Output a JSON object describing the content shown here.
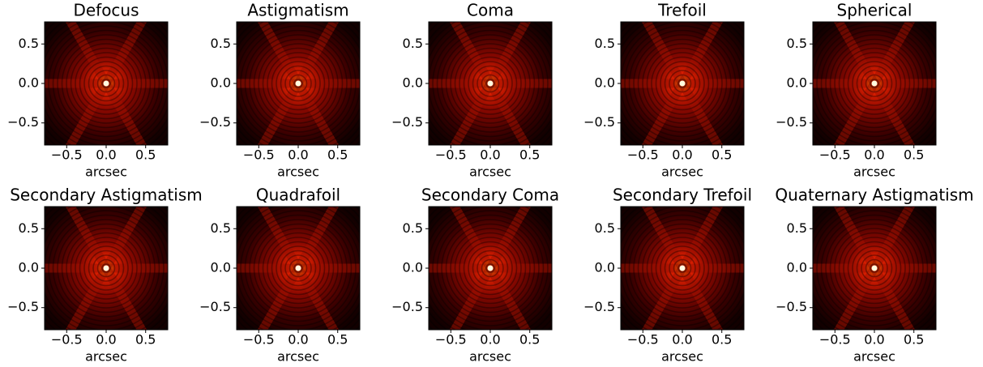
{
  "chart_data": [
    {
      "type": "image",
      "title": "Defocus",
      "xlabel": "arcsec",
      "xlim": [
        -0.78,
        0.78
      ],
      "ylim": [
        -0.78,
        0.78
      ],
      "xticks": [
        {
          "value": -0.5,
          "label": "−0.5"
        },
        {
          "value": 0,
          "label": "0.0"
        },
        0.5
      ],
      "yticks": [
        0.5,
        {
          "value": 0,
          "label": "0.0"
        },
        {
          "value": -0.5,
          "label": "−0.5"
        }
      ]
    },
    {
      "type": "image",
      "title": "Astigmatism",
      "xlabel": "arcsec",
      "xlim": [
        -0.78,
        0.78
      ],
      "ylim": [
        -0.78,
        0.78
      ],
      "xticks": [
        {
          "value": -0.5,
          "label": "−0.5"
        },
        {
          "value": 0,
          "label": "0.0"
        },
        0.5
      ],
      "yticks": [
        0.5,
        {
          "value": 0,
          "label": "0.0"
        },
        {
          "value": -0.5,
          "label": "−0.5"
        }
      ]
    },
    {
      "type": "image",
      "title": "Coma",
      "xlabel": "arcsec",
      "xlim": [
        -0.78,
        0.78
      ],
      "ylim": [
        -0.78,
        0.78
      ],
      "xticks": [
        {
          "value": -0.5,
          "label": "−0.5"
        },
        {
          "value": 0,
          "label": "0.0"
        },
        0.5
      ],
      "yticks": [
        0.5,
        {
          "value": 0,
          "label": "0.0"
        },
        {
          "value": -0.5,
          "label": "−0.5"
        }
      ]
    },
    {
      "type": "image",
      "title": "Trefoil",
      "xlabel": "arcsec",
      "xlim": [
        -0.78,
        0.78
      ],
      "ylim": [
        -0.78,
        0.78
      ],
      "xticks": [
        {
          "value": -0.5,
          "label": "−0.5"
        },
        {
          "value": 0,
          "label": "0.0"
        },
        0.5
      ],
      "yticks": [
        0.5,
        {
          "value": 0,
          "label": "0.0"
        },
        {
          "value": -0.5,
          "label": "−0.5"
        }
      ]
    },
    {
      "type": "image",
      "title": "Spherical",
      "xlabel": "arcsec",
      "xlim": [
        -0.78,
        0.78
      ],
      "ylim": [
        -0.78,
        0.78
      ],
      "xticks": [
        {
          "value": -0.5,
          "label": "−0.5"
        },
        {
          "value": 0,
          "label": "0.0"
        },
        0.5
      ],
      "yticks": [
        0.5,
        {
          "value": 0,
          "label": "0.0"
        },
        {
          "value": -0.5,
          "label": "−0.5"
        }
      ]
    },
    {
      "type": "image",
      "title": "Secondary Astigmatism",
      "xlabel": "arcsec",
      "xlim": [
        -0.78,
        0.78
      ],
      "ylim": [
        -0.78,
        0.78
      ],
      "xticks": [
        {
          "value": -0.5,
          "label": "−0.5"
        },
        {
          "value": 0,
          "label": "0.0"
        },
        0.5
      ],
      "yticks": [
        0.5,
        {
          "value": 0,
          "label": "0.0"
        },
        {
          "value": -0.5,
          "label": "−0.5"
        }
      ]
    },
    {
      "type": "image",
      "title": "Quadrafoil",
      "xlabel": "arcsec",
      "xlim": [
        -0.78,
        0.78
      ],
      "ylim": [
        -0.78,
        0.78
      ],
      "xticks": [
        {
          "value": -0.5,
          "label": "−0.5"
        },
        {
          "value": 0,
          "label": "0.0"
        },
        0.5
      ],
      "yticks": [
        0.5,
        {
          "value": 0,
          "label": "0.0"
        },
        {
          "value": -0.5,
          "label": "−0.5"
        }
      ]
    },
    {
      "type": "image",
      "title": "Secondary Coma",
      "xlabel": "arcsec",
      "xlim": [
        -0.78,
        0.78
      ],
      "ylim": [
        -0.78,
        0.78
      ],
      "xticks": [
        {
          "value": -0.5,
          "label": "−0.5"
        },
        {
          "value": 0,
          "label": "0.0"
        },
        0.5
      ],
      "yticks": [
        0.5,
        {
          "value": 0,
          "label": "0.0"
        },
        {
          "value": -0.5,
          "label": "−0.5"
        }
      ]
    },
    {
      "type": "image",
      "title": "Secondary Trefoil",
      "xlabel": "arcsec",
      "xlim": [
        -0.78,
        0.78
      ],
      "ylim": [
        -0.78,
        0.78
      ],
      "xticks": [
        {
          "value": -0.5,
          "label": "−0.5"
        },
        {
          "value": 0,
          "label": "0.0"
        },
        0.5
      ],
      "yticks": [
        0.5,
        {
          "value": 0,
          "label": "0.0"
        },
        {
          "value": -0.5,
          "label": "−0.5"
        }
      ]
    },
    {
      "type": "image",
      "title": "Quaternary Astigmatism",
      "xlabel": "arcsec",
      "xlim": [
        -0.78,
        0.78
      ],
      "ylim": [
        -0.78,
        0.78
      ],
      "xticks": [
        {
          "value": -0.5,
          "label": "−0.5"
        },
        {
          "value": 0,
          "label": "0.0"
        },
        0.5
      ],
      "yticks": [
        0.5,
        {
          "value": 0,
          "label": "0.0"
        },
        {
          "value": -0.5,
          "label": "−0.5"
        }
      ]
    }
  ]
}
